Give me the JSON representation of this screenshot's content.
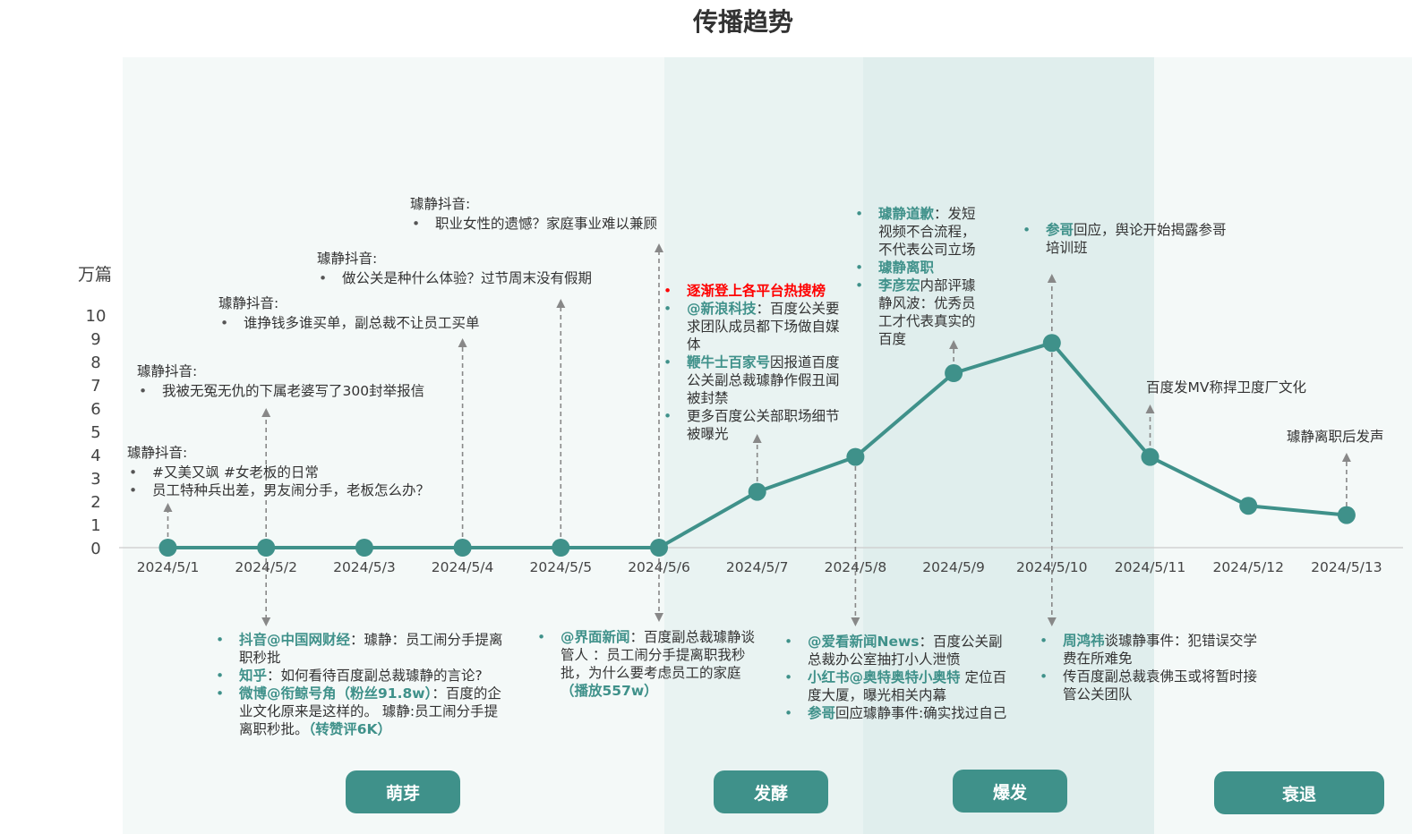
{
  "title": "传播趋势",
  "y_unit": "万篇",
  "chart_data": {
    "type": "line",
    "title": "传播趋势",
    "ylabel": "万篇",
    "x": [
      "2024/5/1",
      "2024/5/2",
      "2024/5/3",
      "2024/5/4",
      "2024/5/5",
      "2024/5/6",
      "2024/5/7",
      "2024/5/8",
      "2024/5/9",
      "2024/5/10",
      "2024/5/11",
      "2024/5/12",
      "2024/5/13"
    ],
    "y": [
      0,
      0,
      0,
      0,
      0,
      0,
      2.4,
      3.9,
      7.5,
      8.8,
      3.9,
      1.8,
      1.4
    ],
    "yticks": [
      0,
      1,
      2,
      3,
      4,
      5,
      6,
      7,
      8,
      9,
      10
    ],
    "ylim": [
      0,
      10
    ],
    "grid": false,
    "line_color": "#3f918a"
  },
  "stages": [
    "萌芽",
    "发酵",
    "爆发",
    "衰退"
  ],
  "annotations": {
    "a1": {
      "header": "璩静抖音:",
      "items": [
        "#又美又飒 #女老板的日常",
        "员工特种兵出差，男友闹分手，老板怎么办？"
      ]
    },
    "a2": {
      "header": "璩静抖音:",
      "items": [
        "我被无冤无仇的下属老婆写了300封举报信"
      ]
    },
    "a3": {
      "header": "璩静抖音:",
      "items": [
        "谁挣钱多谁买单，副总裁不让员工买单"
      ]
    },
    "a4": {
      "header": "璩静抖音:",
      "items": [
        "做公关是种什么体验？过节周末没有假期"
      ]
    },
    "a5": {
      "header": "璩静抖音:",
      "items": [
        "职业女性的遗憾？家庭事业难以兼顾"
      ]
    },
    "a6": {
      "i1": "逐渐登上各平台热搜榜",
      "i2_hl": "@新浪科技",
      "i2_text": "：百度公关要求团队成员都下场做自媒体",
      "i3_hl": "鞭牛士百家号",
      "i3_text": "因报道百度公关副总裁璩静作假丑闻被封禁",
      "i4": "更多百度公关部职场细节被曝光"
    },
    "a7": {
      "i1_hl": "璩静道歉",
      "i1_text": "：发短视频不合流程，不代表公司立场",
      "i2_hl": "璩静离职",
      "i3_hl": "李彦宏",
      "i3_text": "内部评璩静风波：优秀员工才代表真实的百度"
    },
    "a8": {
      "i1_hl": "参哥",
      "i1_text": "回应，舆论开始揭露参哥培训班"
    },
    "a9": {
      "text": "百度发MV称捍卫度厂文化"
    },
    "a10": {
      "text": "璩静离职后发声"
    },
    "b1": {
      "i1_hl": "抖音@中国网财经",
      "i1_text": "：璩静：员工闹分手提离职秒批",
      "i2_hl": "知乎",
      "i2_text": "：如何看待百度副总裁璩静的言论?",
      "i3_hl": "微博@衔鲸号角（粉丝91.8w）",
      "i3_text": "：百度的企业文化原来是这样的。 璩静:员工闹分手提离职秒批。",
      "i3_tail": "（转赞评6K）"
    },
    "b2": {
      "i1_hl": "@界面新闻",
      "i1_text": "：百度副总裁璩静谈管人 ：员工闹分手提离职我秒批，为什么要考虑员工的家庭",
      "i1_tail": "（播放557w）"
    },
    "b3": {
      "i1_hl": "@爱看新闻News",
      "i1_text": "：百度公关副总裁办公室抽打小人泄愤",
      "i2_hl": "小红书@奥特奥特小奥特",
      "i2_text": " 定位百度大厦，曝光相关内幕",
      "i3_hl": "参哥",
      "i3_text": "回应璩静事件:确实找过自己"
    },
    "b4": {
      "i1_hl": "周鸿祎",
      "i1_text": "谈璩静事件：犯错误交学费在所难免",
      "i2": "传百度副总裁袁佛玉或将暂时接管公关团队"
    }
  }
}
